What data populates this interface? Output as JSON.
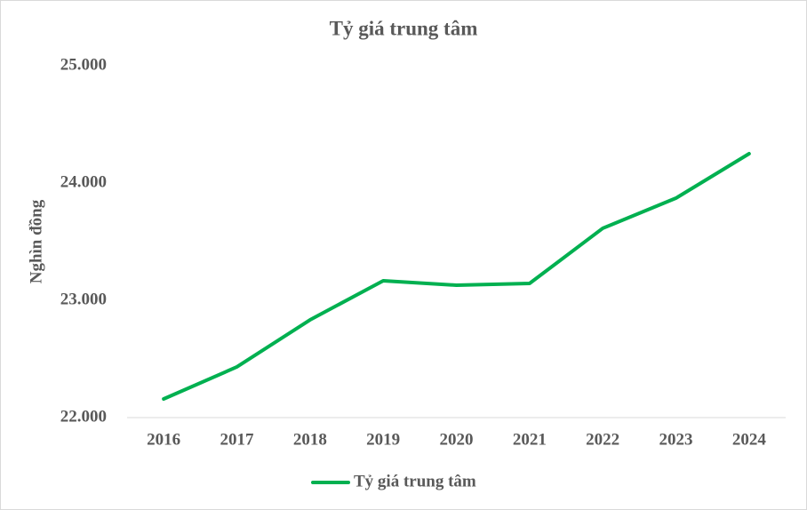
{
  "chart_data": {
    "type": "line",
    "title": "Tỷ giá trung tâm",
    "y_label": "Nghìn đồng",
    "categories": [
      "2016",
      "2017",
      "2018",
      "2019",
      "2020",
      "2021",
      "2022",
      "2023",
      "2024"
    ],
    "series": [
      {
        "name": "Tỷ giá trung tâm",
        "color": "#00b050",
        "values": [
          22159,
          22432,
          22833,
          23167,
          23129,
          23144,
          23614,
          23871,
          24250
        ]
      }
    ],
    "ylim": [
      22000,
      25000
    ],
    "yticks": [
      {
        "value": 22000,
        "label": "22.000"
      },
      {
        "value": 23000,
        "label": "23.000"
      },
      {
        "value": 24000,
        "label": "24.000"
      },
      {
        "value": 25000,
        "label": "25.000"
      }
    ],
    "grid": false,
    "legend": "bottom"
  }
}
